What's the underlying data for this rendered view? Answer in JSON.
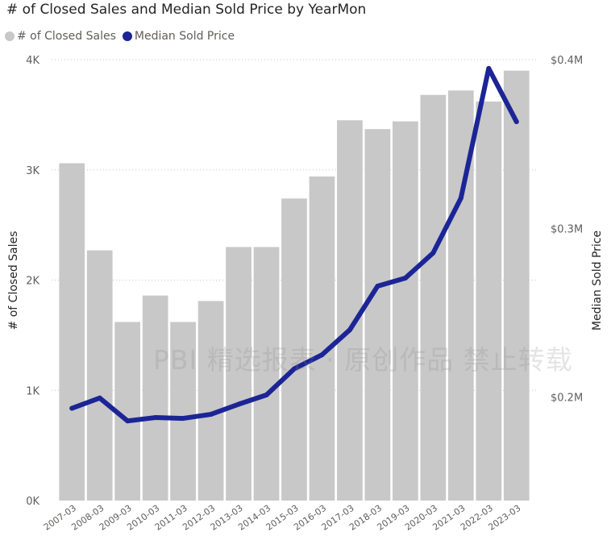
{
  "chart_data": {
    "type": "bar+line",
    "title": "# of Closed Sales and Median Sold Price by YearMon",
    "categories": [
      "2007-03",
      "2008-03",
      "2009-03",
      "2010-03",
      "2011-03",
      "2012-03",
      "2013-03",
      "2014-03",
      "2015-03",
      "2016-03",
      "2017-03",
      "2018-03",
      "2019-03",
      "2020-03",
      "2021-03",
      "2022-03",
      "2023-03"
    ],
    "series": [
      {
        "name": "# of Closed Sales",
        "type": "bar",
        "axis": "left",
        "color": "#c8c8c8",
        "values": [
          3060,
          2270,
          1620,
          1860,
          1620,
          1810,
          2300,
          2300,
          2740,
          2940,
          3450,
          3370,
          3440,
          3680,
          3720,
          3620,
          3900
        ]
      },
      {
        "name": "Median Sold Price",
        "type": "line",
        "axis": "right",
        "color": "#1c2596",
        "values": [
          0.1933,
          0.1994,
          0.1858,
          0.1878,
          0.1873,
          0.1897,
          0.1957,
          0.2012,
          0.2167,
          0.225,
          0.2398,
          0.2657,
          0.2705,
          0.2854,
          0.3179,
          0.3948,
          0.3632
        ]
      }
    ],
    "y_left": {
      "label": "# of Closed Sales",
      "ticks": [
        "0K",
        "1K",
        "2K",
        "3K",
        "4K"
      ],
      "tick_values": [
        0,
        1000,
        2000,
        3000,
        4000
      ],
      "range": [
        0,
        4000
      ]
    },
    "y_right": {
      "label": "Median Sold Price",
      "ticks": [
        "$0.2M",
        "$0.3M",
        "$0.4M"
      ],
      "tick_values": [
        0.2,
        0.3,
        0.4
      ],
      "range": [
        0.1386,
        0.4
      ]
    },
    "gridlines": true,
    "legend_position": "top-left"
  },
  "watermark": "PBI 精选报表 · 原创作品 禁止转载"
}
